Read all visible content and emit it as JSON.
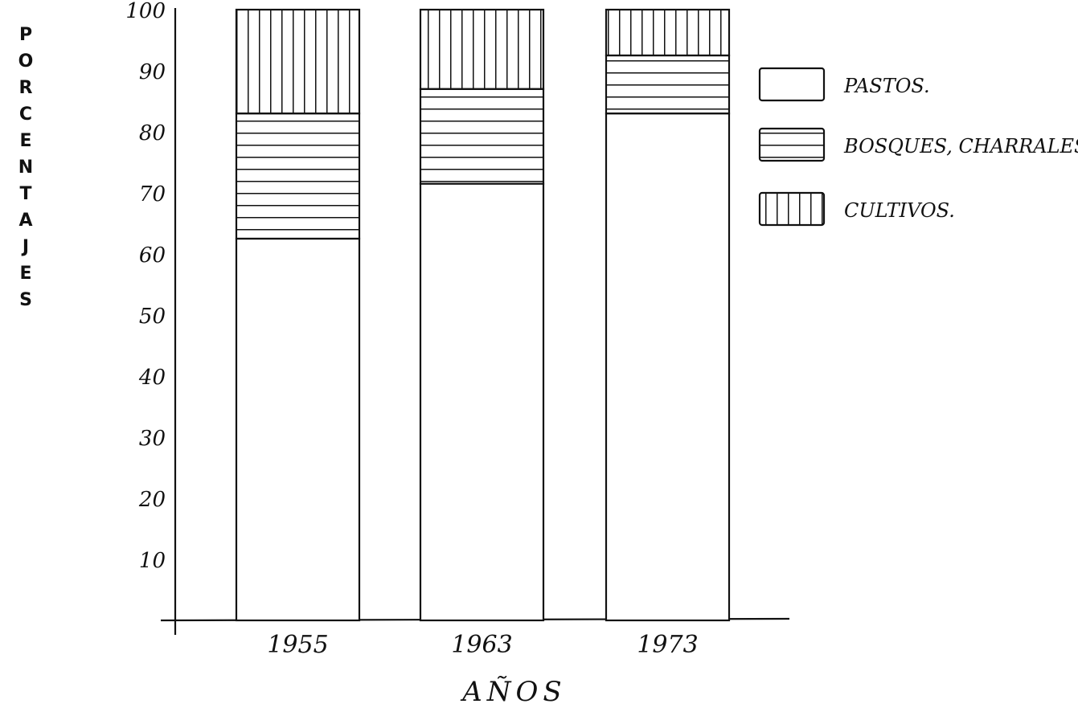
{
  "chart_data": {
    "type": "bar",
    "stacked": true,
    "categories": [
      "1955",
      "1963",
      "1973"
    ],
    "series": [
      {
        "name": "PASTOS.",
        "pattern": "none",
        "values": [
          62.5,
          71.5,
          83
        ]
      },
      {
        "name": "BOSQUES, CHARRALES.",
        "pattern": "horizontal",
        "values": [
          20.5,
          15.5,
          9.5
        ]
      },
      {
        "name": "CULTIVOS.",
        "pattern": "vertical",
        "values": [
          17,
          13,
          7.5
        ]
      }
    ],
    "ylabel": "PORCENTAJES",
    "xlabel": "AÑOS",
    "yticks": [
      "100",
      "90",
      "80",
      "70",
      "60",
      "50",
      "40",
      "30",
      "20",
      "10"
    ],
    "ylim": [
      0,
      100
    ],
    "legend": "right",
    "grid": false,
    "colors": {
      "ink": "#111111",
      "background": "#ffffff"
    }
  }
}
